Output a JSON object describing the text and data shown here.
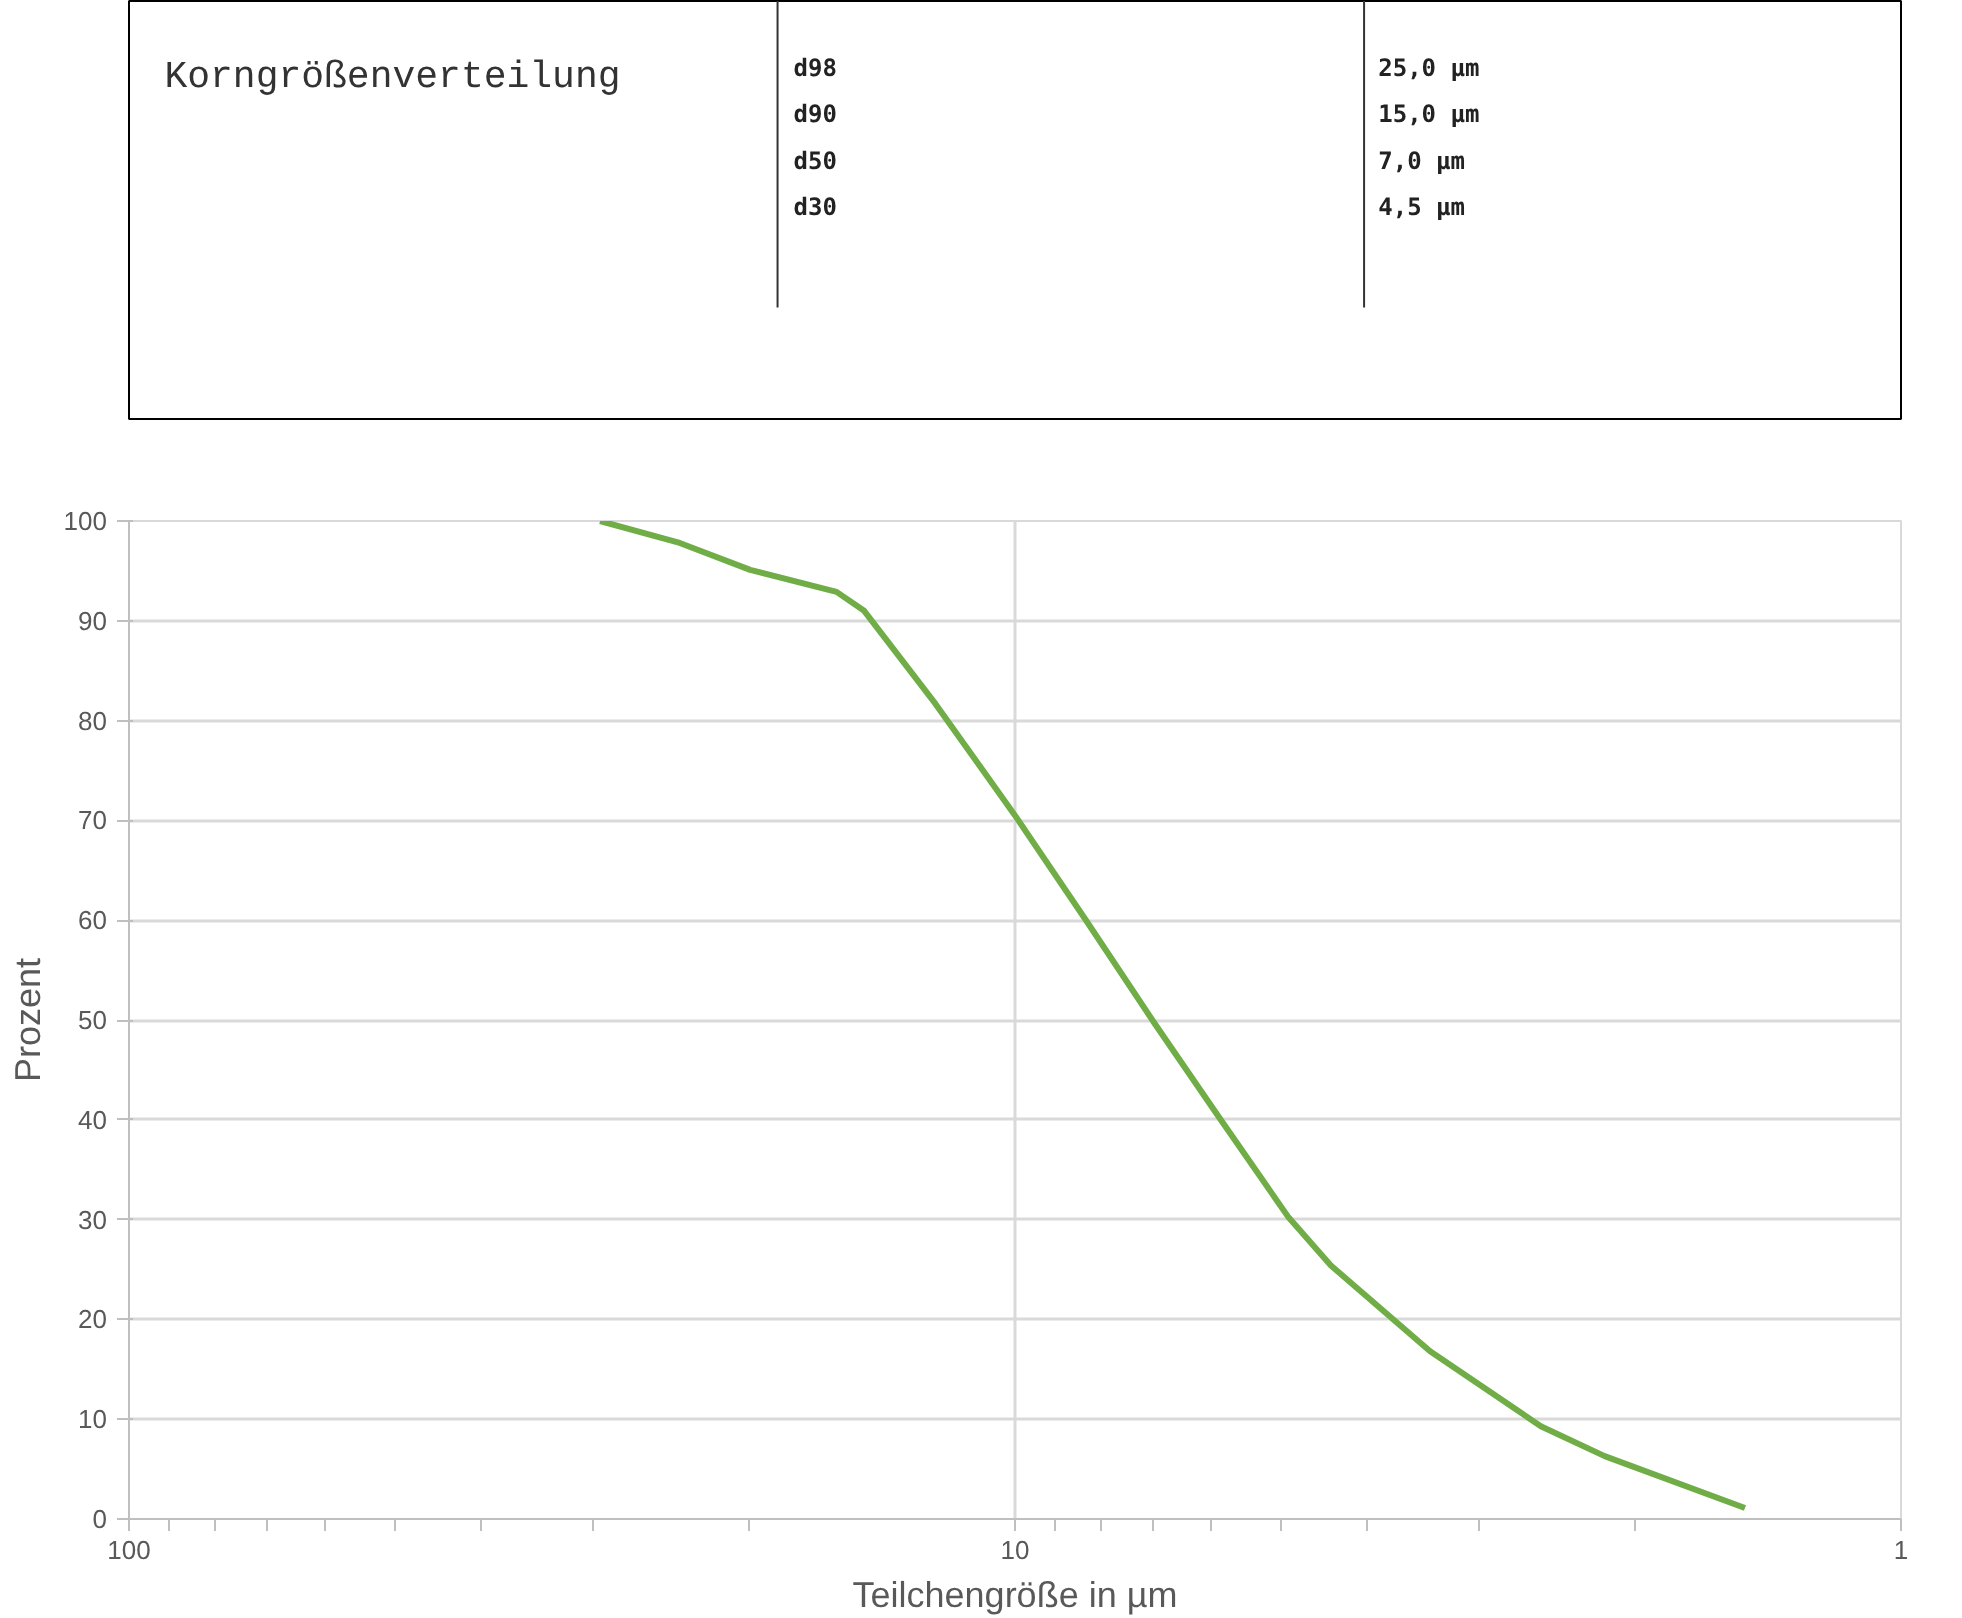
{
  "chart_data": {
    "type": "line",
    "title": "Korngrößenverteilung",
    "annotations": [
      "d98",
      "25,0 µm",
      "d90",
      "15,0 µm",
      "d50",
      "7,0 µm",
      "d30",
      "4,5 µm"
    ],
    "xlabel": "Teilchengröße in µm",
    "ylabel": "Prozent",
    "log": "x",
    "xlim": [
      100,
      1
    ],
    "xticks": [
      100,
      10,
      1
    ],
    "ylim": [
      0,
      100
    ],
    "yticks": [
      0,
      10,
      20,
      30,
      40,
      50,
      60,
      70,
      80,
      90,
      100
    ],
    "grid": true,
    "marker": "none",
    "line_style": "solid",
    "series": [
      {
        "color": "#70ad47",
        "x": [
          29.4,
          23.9,
          19.9,
          15.9,
          14.8,
          12.3,
          10,
          8.33,
          6.95,
          5.89,
          4.91,
          4.4,
          3.4,
          2.55,
          2.16,
          1.5
        ],
        "values": [
          100,
          97.8,
          95.1,
          92.9,
          91.0,
          81.7,
          70.5,
          60.1,
          49.6,
          40.3,
          30.2,
          25.4,
          16.8,
          9.3,
          6.3,
          1.1
        ]
      }
    ]
  }
}
